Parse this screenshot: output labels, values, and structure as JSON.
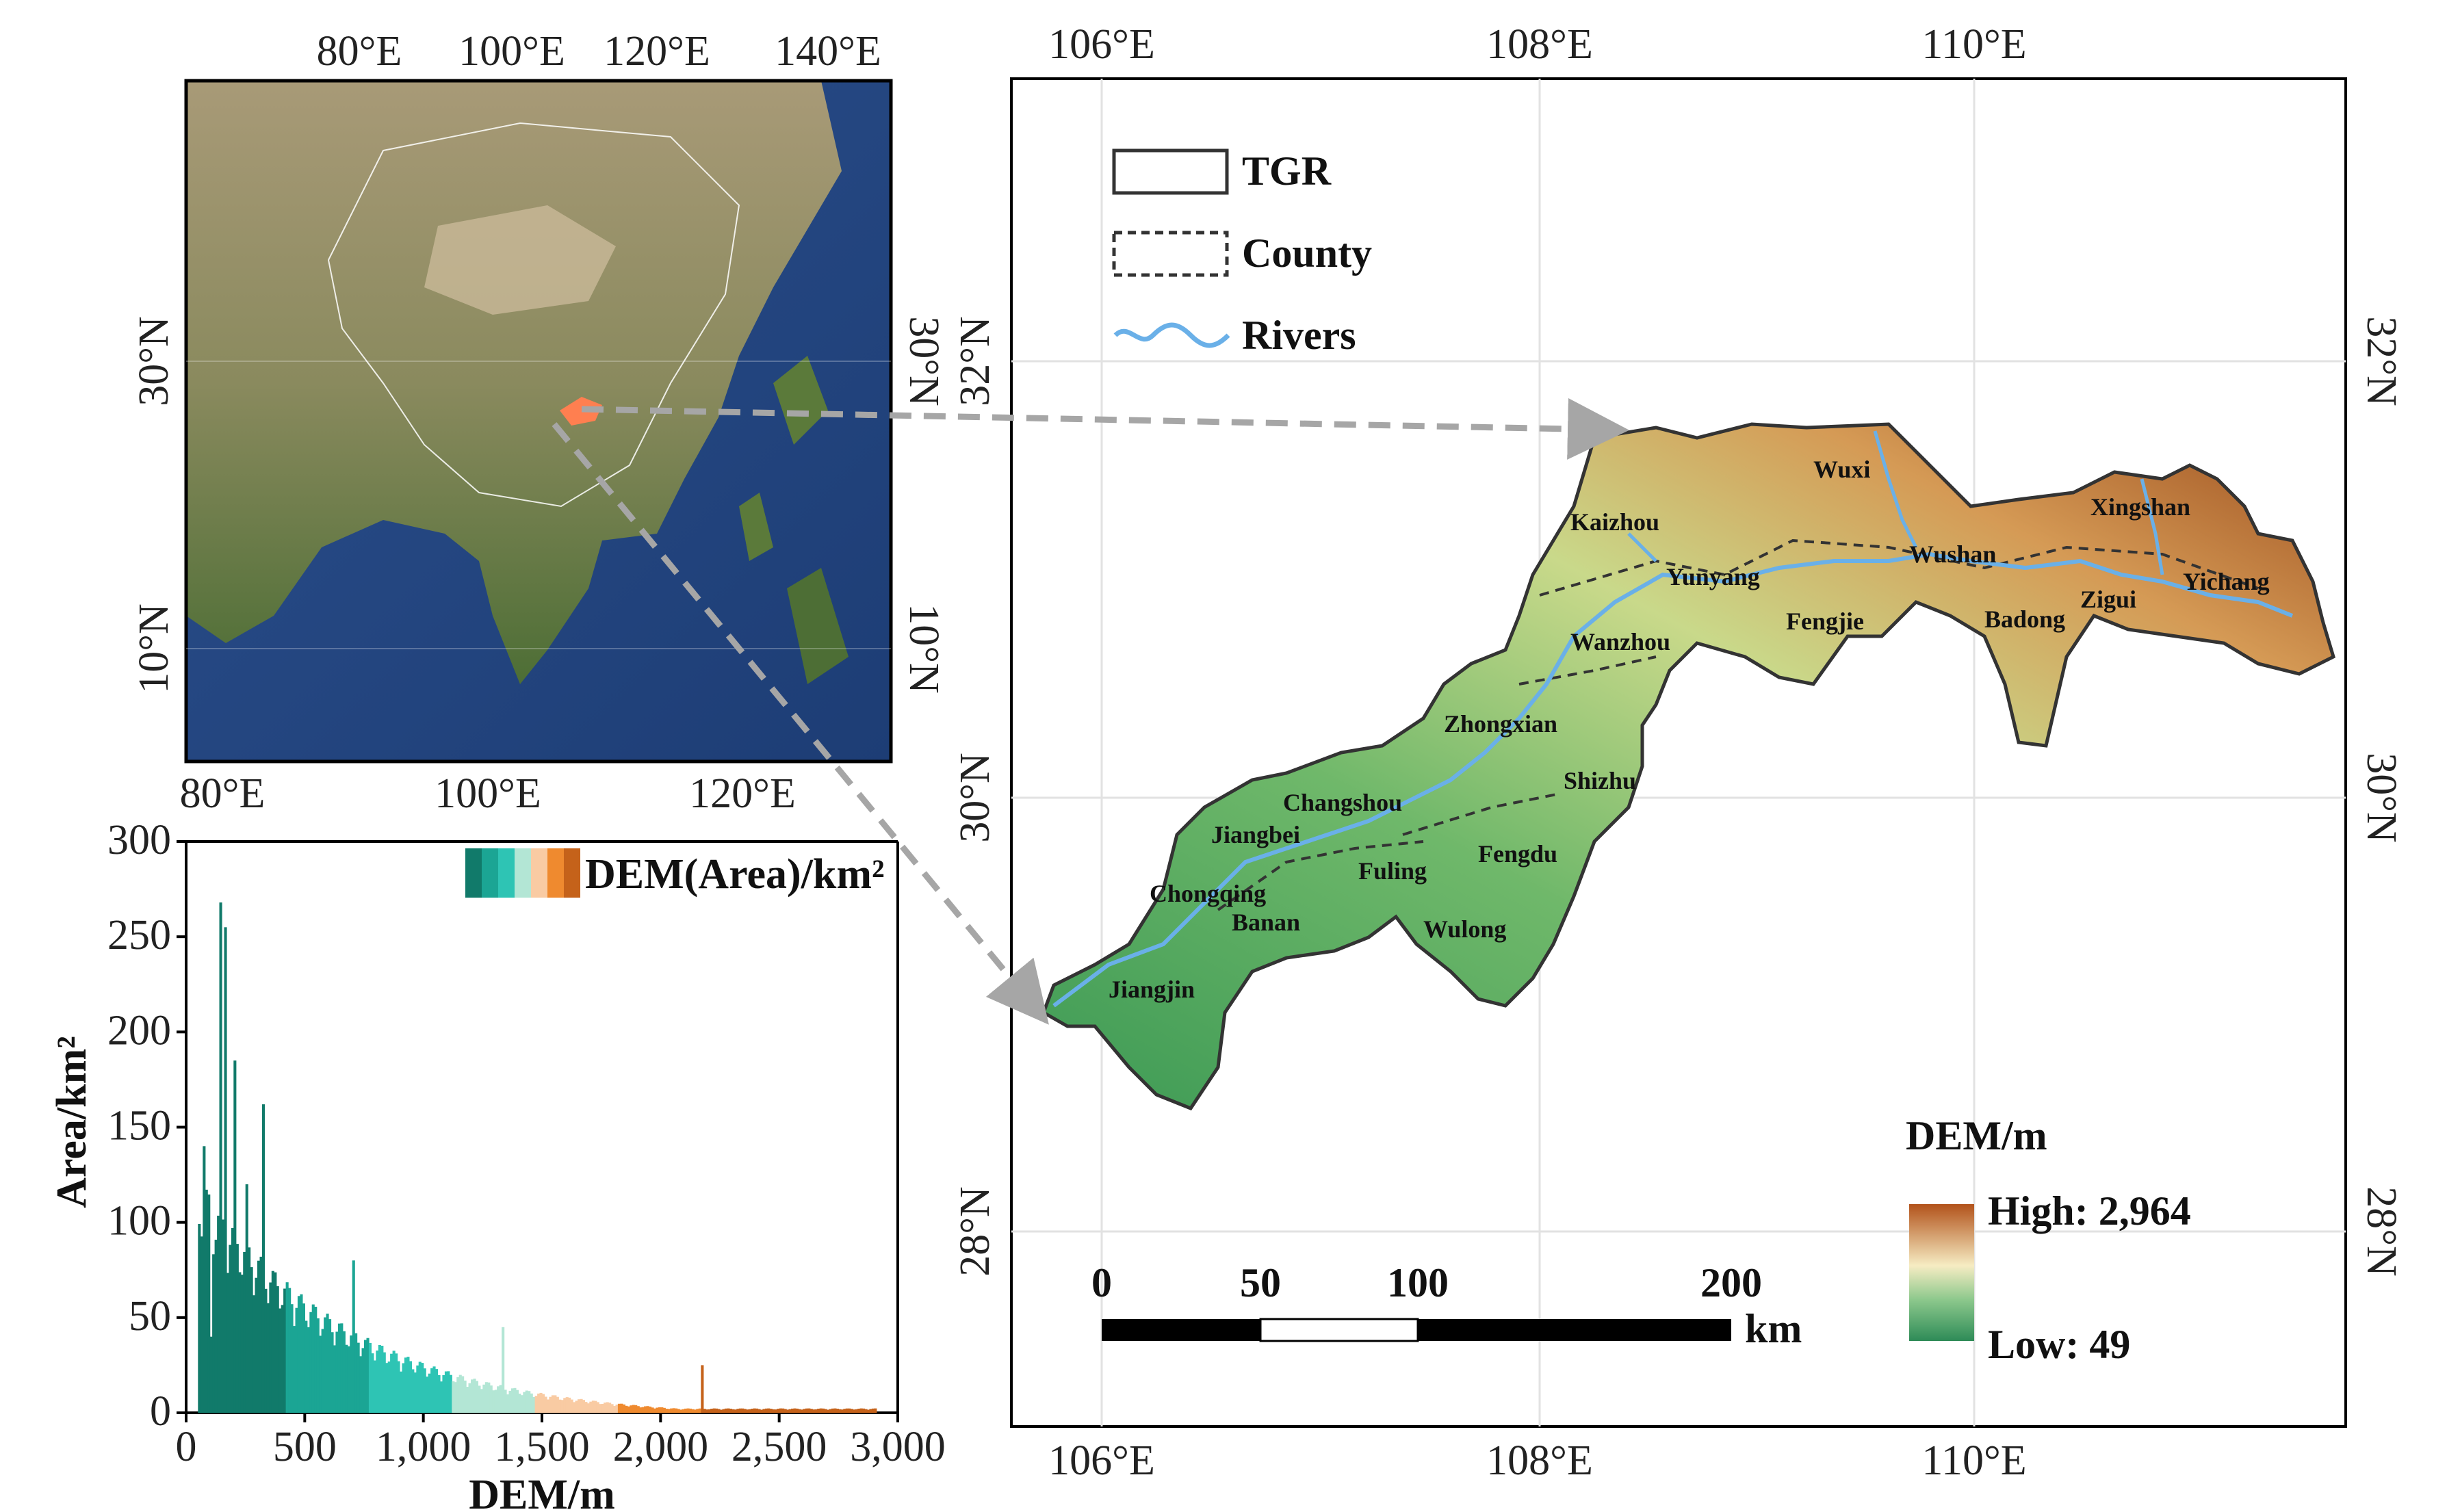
{
  "inset_map": {
    "top_ticks": [
      "80°E",
      "100°E",
      "120°E",
      "140°E"
    ],
    "bottom_ticks": [
      "80°E",
      "100°E",
      "120°E"
    ],
    "left_ticks": [
      "30°N",
      "10°N"
    ],
    "right_ticks": [
      "30°N",
      "10°N"
    ]
  },
  "main_map": {
    "top_ticks": [
      "106°E",
      "108°E",
      "110°E"
    ],
    "bottom_ticks": [
      "106°E",
      "108°E",
      "110°E"
    ],
    "left_ticks": [
      "32°N",
      "30°N",
      "28°N"
    ],
    "right_ticks": [
      "32°N",
      "30°N",
      "28°N"
    ],
    "places": [
      "Wuxi",
      "Kaizhou",
      "Xingshan",
      "Wushan",
      "Yunyang",
      "Yichang",
      "Fengjie",
      "Zigui",
      "Badong",
      "Wanzhou",
      "Zhongxian",
      "Shizhu",
      "Changshou",
      "Jiangbei",
      "Fuling",
      "Fengdu",
      "Chongqing",
      "Banan",
      "Wulong",
      "Jiangjin"
    ],
    "legend": {
      "tgr": "TGR",
      "county": "County",
      "rivers": "Rivers"
    },
    "dem_title": "DEM/m",
    "dem_high": "High: 2,964",
    "dem_low": "Low: 49",
    "scale_labels": [
      "0",
      "50",
      "100",
      "200"
    ],
    "scale_unit": "km"
  },
  "chart_data": {
    "type": "bar",
    "title": "",
    "legend_label": "DEM(Area)/km²",
    "xlabel": "DEM/m",
    "ylabel": "Area/km²",
    "xlim": [
      0,
      3000
    ],
    "ylim": [
      0,
      300
    ],
    "x_tick_labels": [
      "0",
      "500",
      "1,000",
      "1,500",
      "2,000",
      "2,500",
      "3,000"
    ],
    "y_tick_labels": [
      "0",
      "50",
      "100",
      "150",
      "200",
      "250",
      "300"
    ],
    "dem_classes": [
      {
        "range": [
          49,
          420
        ],
        "color": "#117a6a"
      },
      {
        "range": [
          420,
          770
        ],
        "color": "#1ba594"
      },
      {
        "range": [
          770,
          1120
        ],
        "color": "#2ec4b4"
      },
      {
        "range": [
          1120,
          1470
        ],
        "color": "#b3e6d5"
      },
      {
        "range": [
          1470,
          1820
        ],
        "color": "#f9cba3"
      },
      {
        "range": [
          1820,
          2170
        ],
        "color": "#ef8a2f"
      },
      {
        "range": [
          2170,
          2964
        ],
        "color": "#c5621a"
      }
    ],
    "peaks": [
      {
        "x": 70,
        "y": 140
      },
      {
        "x": 95,
        "y": 40
      },
      {
        "x": 140,
        "y": 268
      },
      {
        "x": 160,
        "y": 255
      },
      {
        "x": 200,
        "y": 185
      },
      {
        "x": 250,
        "y": 120
      },
      {
        "x": 320,
        "y": 162
      },
      {
        "x": 700,
        "y": 80
      },
      {
        "x": 1330,
        "y": 45
      },
      {
        "x": 2170,
        "y": 25
      }
    ]
  },
  "colors": {
    "dem_low": "#2e8b57",
    "dem_mid": "#f5f0c0",
    "dem_high": "#b2521a",
    "river": "#6ab0e8",
    "arrow": "#a6a6a6",
    "inset_highlight": "#ff7f50"
  }
}
